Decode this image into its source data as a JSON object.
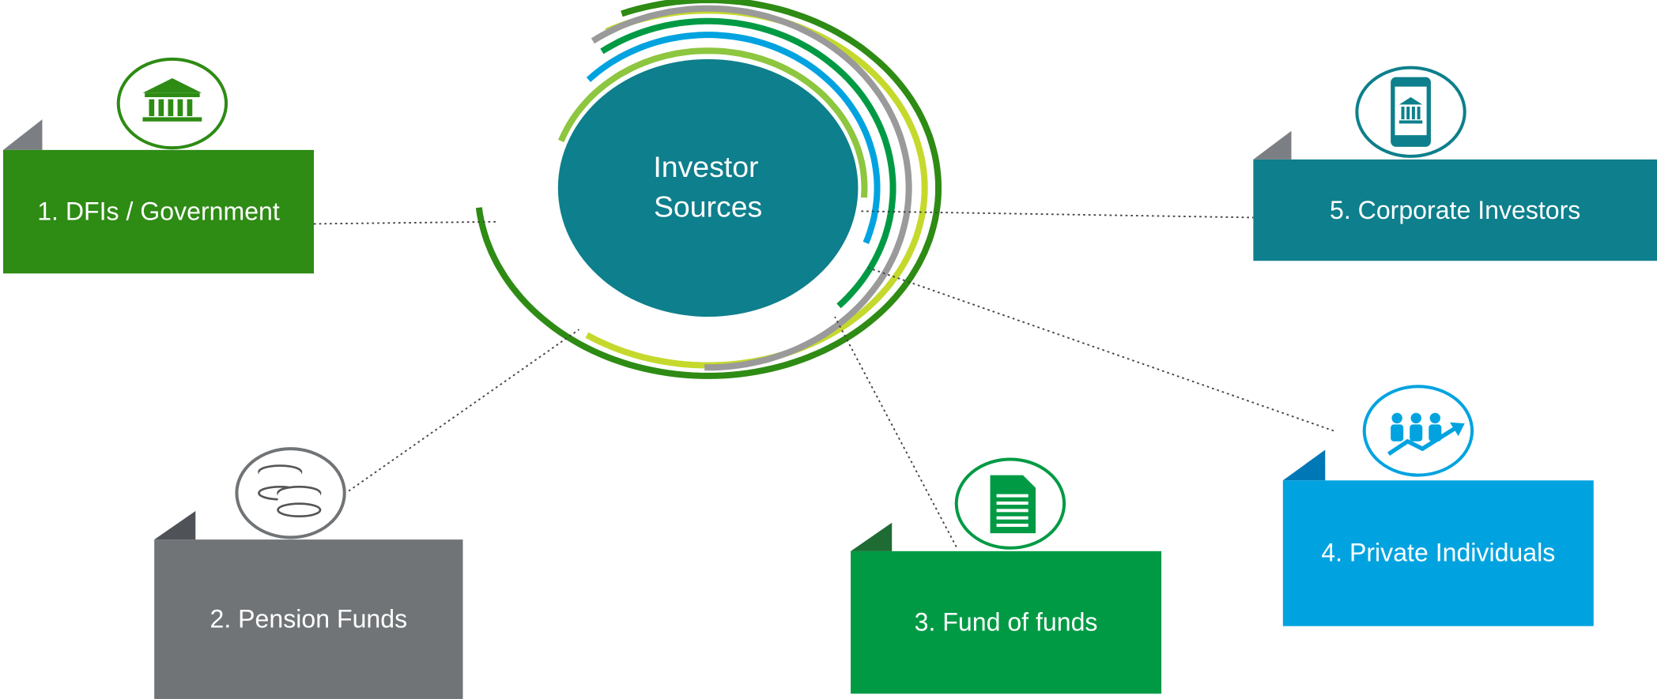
{
  "center": {
    "lines": [
      "Investor",
      "Sources"
    ]
  },
  "nodes": [
    {
      "label": "1. DFIs / Government"
    },
    {
      "label": "2. Pension Funds"
    },
    {
      "label": "3. Fund of funds"
    },
    {
      "label": "4. Private Individuals"
    },
    {
      "label": "5. Corporate Investors"
    }
  ]
}
